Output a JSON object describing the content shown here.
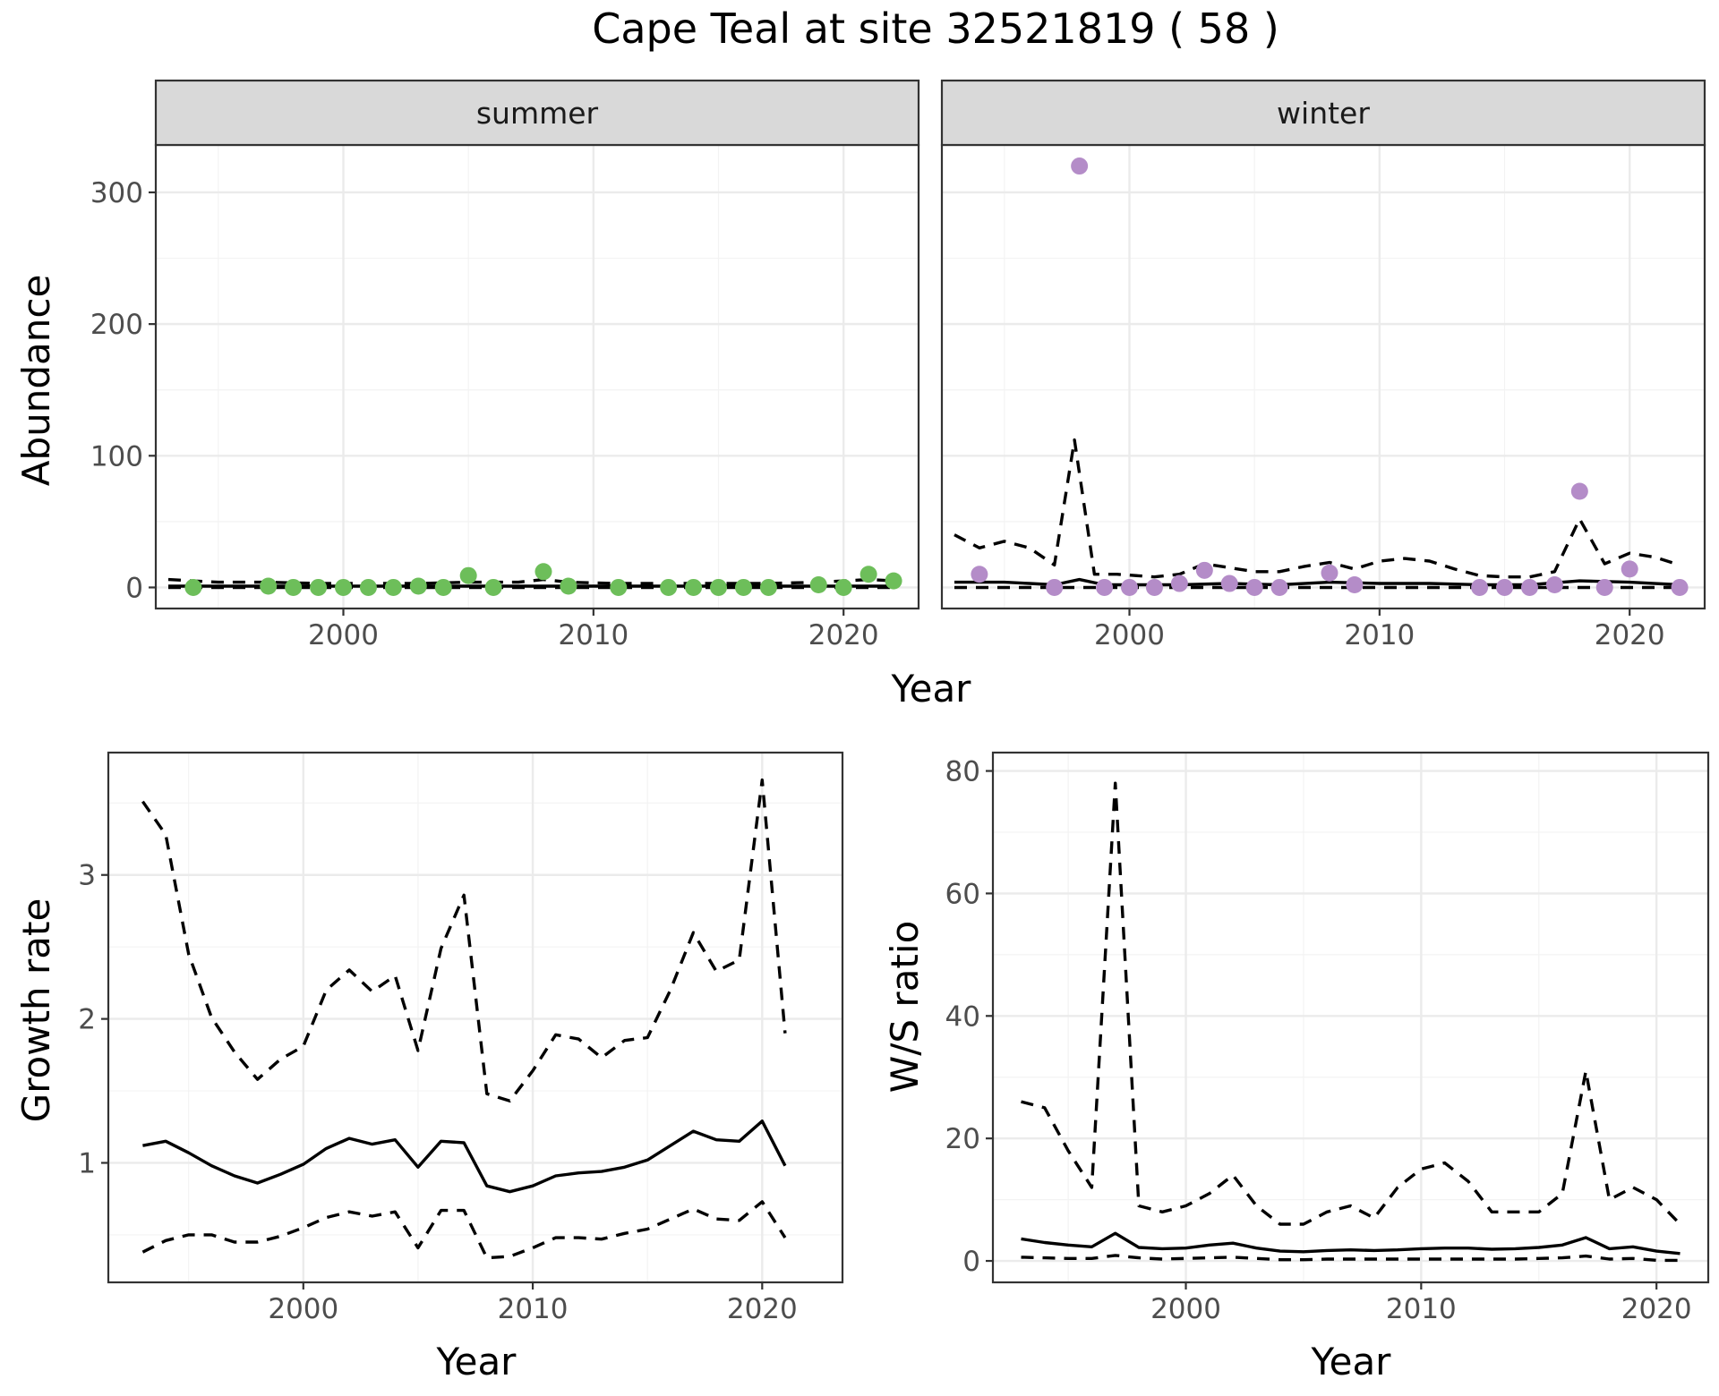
{
  "figure": {
    "title": "Cape Teal at site 32521819 ( 58 )"
  },
  "chart_data": [
    {
      "type": "line",
      "id": "abundance",
      "title": "",
      "xlabel": "Year",
      "ylabel": "Abundance",
      "xlim": [
        1992.5,
        2023.0
      ],
      "ylim": [
        -16,
        336
      ],
      "x_ticks": [
        2000,
        2010,
        2020
      ],
      "y_ticks": [
        0,
        100,
        200,
        300
      ],
      "grid": true,
      "facets": [
        {
          "label": "summer",
          "point_color": "#6dbe5a",
          "points": {
            "x": [
              1994,
              1997,
              1998,
              1999,
              2000,
              2001,
              2002,
              2003,
              2004,
              2005,
              2006,
              2008,
              2009,
              2011,
              2013,
              2014,
              2015,
              2016,
              2017,
              2019,
              2020,
              2021,
              2022
            ],
            "y": [
              0,
              1,
              0,
              0,
              0,
              0,
              0,
              1,
              0,
              9,
              0,
              12,
              1,
              0,
              0,
              0,
              0,
              0,
              0,
              2,
              0,
              10,
              5
            ]
          },
          "series": [
            {
              "style": "solid",
              "x": [
                1993,
                1995,
                1997,
                1999,
                2001,
                2003,
                2005,
                2007,
                2009,
                2011,
                2013,
                2015,
                2017,
                2019,
                2021,
                2022
              ],
              "y": [
                1,
                1,
                1,
                1,
                1,
                1,
                1,
                1,
                1,
                1,
                1,
                1,
                1,
                1,
                1,
                1
              ]
            },
            {
              "style": "dashed",
              "x": [
                1993,
                1995,
                1997,
                1999,
                2001,
                2003,
                2005,
                2007,
                2008,
                2009,
                2011,
                2013,
                2015,
                2017,
                2019,
                2021,
                2022
              ],
              "y": [
                6,
                4,
                4,
                3,
                3,
                3,
                4,
                4,
                6,
                4,
                3,
                3,
                3,
                3,
                4,
                6,
                5
              ]
            },
            {
              "style": "dashed",
              "x": [
                1993,
                1997,
                2001,
                2005,
                2009,
                2013,
                2017,
                2022
              ],
              "y": [
                0,
                0,
                0,
                0,
                0,
                0,
                0,
                0
              ]
            }
          ]
        },
        {
          "label": "winter",
          "point_color": "#b48cc8",
          "points": {
            "x": [
              1994,
              1997,
              1998,
              1999,
              2000,
              2001,
              2002,
              2003,
              2004,
              2005,
              2006,
              2008,
              2009,
              2014,
              2015,
              2016,
              2017,
              2018,
              2019,
              2020,
              2022
            ],
            "y": [
              10,
              0,
              320,
              0,
              0,
              0,
              3,
              13,
              3,
              0,
              0,
              11,
              2,
              0,
              0,
              0,
              2,
              73,
              0,
              14,
              0
            ]
          },
          "series": [
            {
              "style": "solid",
              "x": [
                1993,
                1994,
                1995,
                1996,
                1997,
                1998,
                1999,
                2000,
                2002,
                2004,
                2006,
                2008,
                2010,
                2012,
                2014,
                2016,
                2018,
                2020,
                2022
              ],
              "y": [
                4,
                4,
                4,
                3,
                2,
                6,
                2,
                2,
                2,
                3,
                2,
                4,
                3,
                3,
                2,
                2,
                5,
                4,
                2
              ]
            },
            {
              "style": "dashed",
              "x": [
                1993,
                1994,
                1995,
                1996,
                1997,
                1997.8,
                1998.6,
                1999.5,
                2001,
                2002,
                2003,
                2004,
                2005,
                2006,
                2007,
                2008,
                2009,
                2010,
                2011,
                2012,
                2013,
                2014,
                2015,
                2016,
                2017,
                2018,
                2019,
                2020,
                2021,
                2022
              ],
              "y": [
                40,
                30,
                35,
                30,
                17,
                112,
                10,
                10,
                8,
                10,
                18,
                15,
                12,
                12,
                16,
                19,
                14,
                20,
                22,
                20,
                14,
                9,
                8,
                8,
                12,
                52,
                18,
                26,
                23,
                17
              ]
            },
            {
              "style": "dashed",
              "x": [
                1993,
                1997,
                2001,
                2005,
                2009,
                2013,
                2017,
                2022
              ],
              "y": [
                0,
                0,
                0,
                0,
                0,
                0,
                0,
                0
              ]
            }
          ]
        }
      ]
    },
    {
      "type": "line",
      "id": "growth",
      "title": "",
      "xlabel": "Year",
      "ylabel": "Growth rate",
      "xlim": [
        1991.5,
        2023.5
      ],
      "ylim": [
        0.17,
        3.85
      ],
      "x_ticks": [
        2000,
        2010,
        2020
      ],
      "y_ticks": [
        1,
        2,
        3
      ],
      "grid": true,
      "series": [
        {
          "style": "solid",
          "x": [
            1993,
            1994,
            1995,
            1996,
            1997,
            1998,
            1999,
            2000,
            2001,
            2002,
            2003,
            2004,
            2005,
            2006,
            2007,
            2008,
            2009,
            2010,
            2011,
            2012,
            2013,
            2014,
            2015,
            2016,
            2017,
            2018,
            2019,
            2020,
            2021
          ],
          "y": [
            1.12,
            1.15,
            1.07,
            0.98,
            0.91,
            0.86,
            0.92,
            0.99,
            1.1,
            1.17,
            1.13,
            1.16,
            0.97,
            1.15,
            1.14,
            0.84,
            0.8,
            0.84,
            0.91,
            0.93,
            0.94,
            0.97,
            1.02,
            1.12,
            1.22,
            1.16,
            1.15,
            1.29,
            0.98
          ]
        },
        {
          "style": "dashed",
          "x": [
            1993,
            1994,
            1995,
            1996,
            1997,
            1998,
            1999,
            2000,
            2001,
            2002,
            2003,
            2004,
            2005,
            2006,
            2007,
            2008,
            2009,
            2010,
            2011,
            2012,
            2013,
            2014,
            2015,
            2016,
            2017,
            2018,
            2019,
            2020,
            2021
          ],
          "y": [
            3.51,
            3.28,
            2.45,
            2.01,
            1.77,
            1.58,
            1.72,
            1.81,
            2.2,
            2.34,
            2.19,
            2.3,
            1.78,
            2.49,
            2.86,
            1.48,
            1.43,
            1.64,
            1.89,
            1.86,
            1.73,
            1.85,
            1.87,
            2.2,
            2.6,
            2.33,
            2.41,
            3.66,
            1.9
          ]
        },
        {
          "style": "dashed",
          "x": [
            1993,
            1994,
            1995,
            1996,
            1997,
            1998,
            1999,
            2000,
            2001,
            2002,
            2003,
            2004,
            2005,
            2006,
            2007,
            2008,
            2009,
            2010,
            2011,
            2012,
            2013,
            2014,
            2015,
            2016,
            2017,
            2018,
            2019,
            2020,
            2021
          ],
          "y": [
            0.38,
            0.46,
            0.5,
            0.5,
            0.45,
            0.45,
            0.49,
            0.55,
            0.62,
            0.66,
            0.63,
            0.66,
            0.41,
            0.67,
            0.67,
            0.34,
            0.35,
            0.41,
            0.48,
            0.48,
            0.47,
            0.51,
            0.54,
            0.61,
            0.68,
            0.61,
            0.6,
            0.73,
            0.48
          ]
        }
      ]
    },
    {
      "type": "line",
      "id": "ws_ratio",
      "title": "",
      "xlabel": "Year",
      "ylabel": "W/S ratio",
      "xlim": [
        1991.8,
        2022.2
      ],
      "ylim": [
        -3.5,
        83
      ],
      "x_ticks": [
        2000,
        2010,
        2020
      ],
      "y_ticks": [
        0,
        20,
        40,
        60,
        80
      ],
      "grid": true,
      "series": [
        {
          "style": "solid",
          "x": [
            1993,
            1994,
            1995,
            1996,
            1997,
            1998,
            1999,
            2000,
            2001,
            2002,
            2003,
            2004,
            2005,
            2006,
            2007,
            2008,
            2009,
            2010,
            2011,
            2012,
            2013,
            2014,
            2015,
            2016,
            2017,
            2018,
            2019,
            2020,
            2021
          ],
          "y": [
            3.6,
            3.0,
            2.6,
            2.3,
            4.5,
            2.2,
            2.0,
            2.1,
            2.6,
            2.9,
            2.1,
            1.6,
            1.5,
            1.7,
            1.8,
            1.7,
            1.8,
            2.0,
            2.1,
            2.1,
            1.9,
            2.0,
            2.2,
            2.6,
            3.8,
            2.0,
            2.3,
            1.6,
            1.2
          ]
        },
        {
          "style": "dashed",
          "x": [
            1993,
            1994,
            1995,
            1996,
            1997,
            1998,
            1999,
            2000,
            2001,
            2002,
            2003,
            2004,
            2005,
            2006,
            2007,
            2008,
            2009,
            2010,
            2011,
            2012,
            2013,
            2014,
            2015,
            2016,
            2017,
            2018,
            2019,
            2020,
            2021
          ],
          "y": [
            26,
            25,
            18,
            12,
            78,
            9,
            8,
            9,
            11,
            14,
            9,
            6,
            6,
            8,
            9,
            7,
            12,
            15,
            16,
            13,
            8,
            8,
            8,
            11,
            31,
            10,
            12,
            10,
            6
          ]
        },
        {
          "style": "dashed",
          "x": [
            1993,
            1994,
            1995,
            1996,
            1997,
            1998,
            1999,
            2000,
            2001,
            2002,
            2003,
            2004,
            2005,
            2006,
            2007,
            2008,
            2009,
            2010,
            2011,
            2012,
            2013,
            2014,
            2015,
            2016,
            2017,
            2018,
            2019,
            2020,
            2021
          ],
          "y": [
            0.6,
            0.5,
            0.4,
            0.4,
            0.9,
            0.5,
            0.3,
            0.4,
            0.5,
            0.6,
            0.4,
            0.2,
            0.2,
            0.3,
            0.3,
            0.3,
            0.3,
            0.3,
            0.3,
            0.3,
            0.3,
            0.3,
            0.4,
            0.5,
            0.8,
            0.3,
            0.4,
            0.1,
            0.1
          ]
        }
      ]
    }
  ]
}
